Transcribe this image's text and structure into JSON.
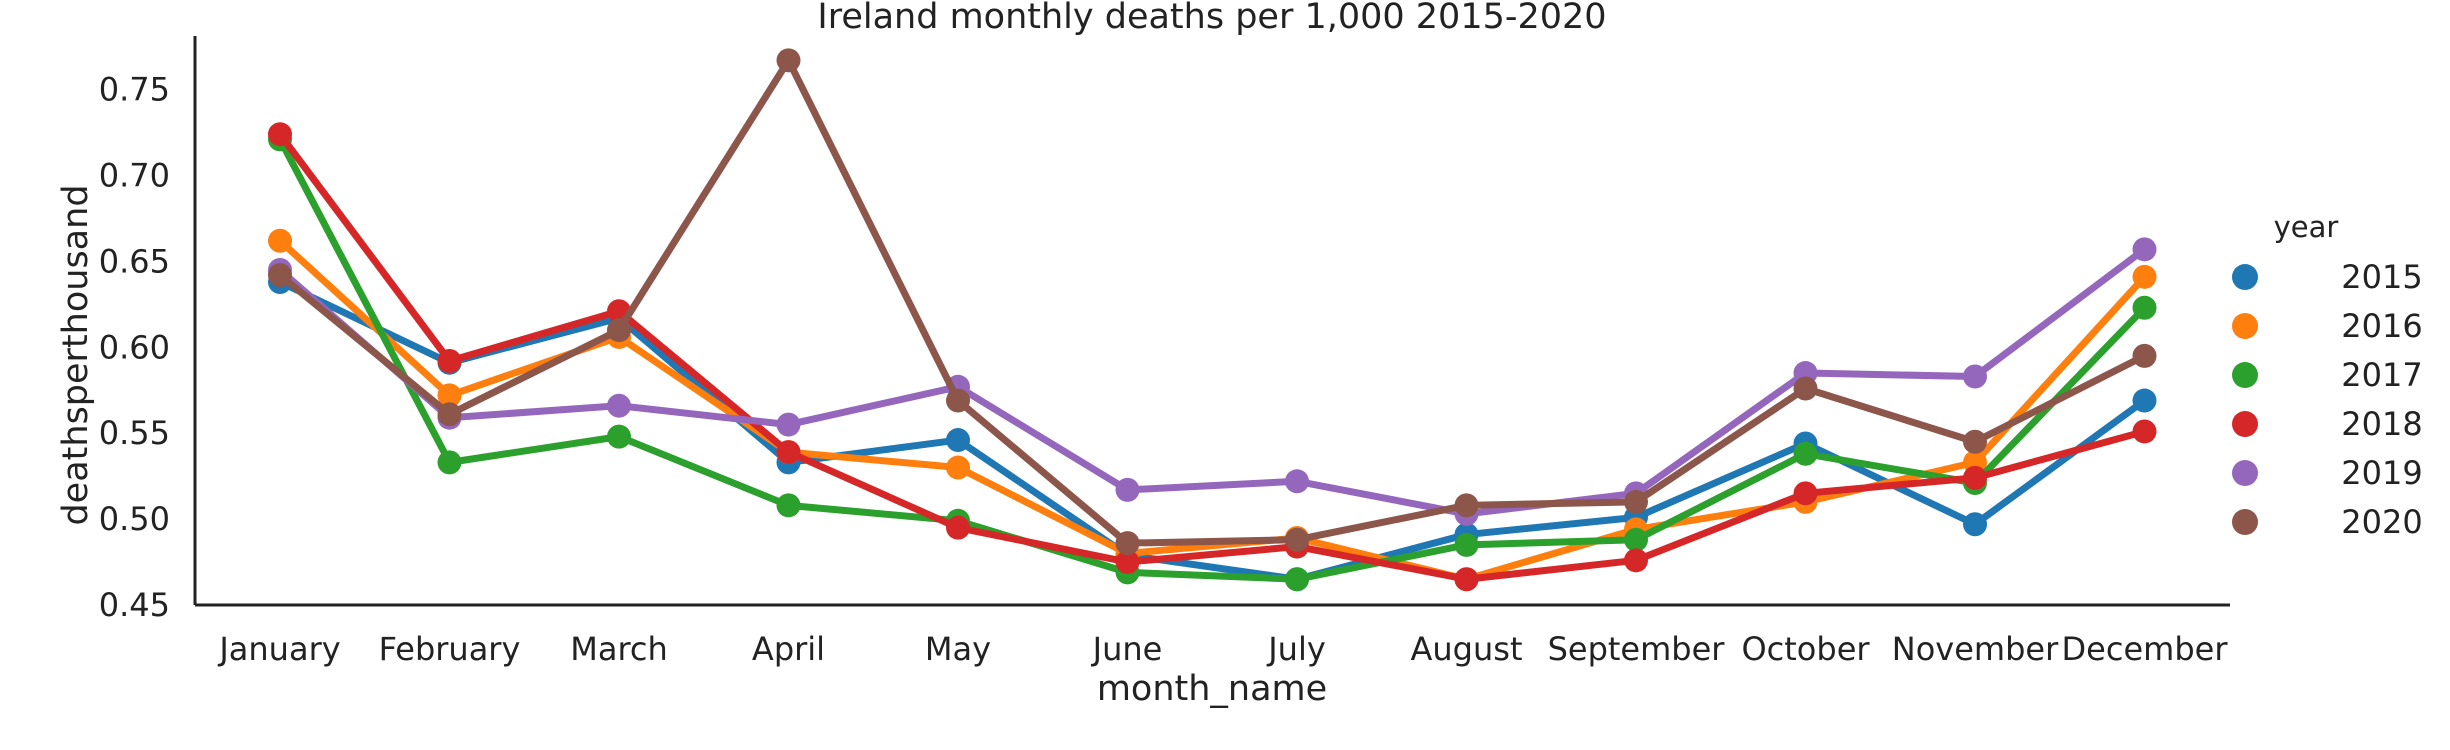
{
  "chart_data": {
    "type": "line",
    "title": "Ireland monthly deaths per 1,000 2015-2020",
    "xlabel": "month_name",
    "ylabel": "deathsperthousand",
    "categories": [
      "January",
      "February",
      "March",
      "April",
      "May",
      "June",
      "July",
      "August",
      "September",
      "October",
      "November",
      "December"
    ],
    "ylim": [
      0.45,
      0.78
    ],
    "yticks": [
      "0.45",
      "0.50",
      "0.55",
      "0.60",
      "0.65",
      "0.70",
      "0.75"
    ],
    "grid": false,
    "legend": {
      "title": "year",
      "placement": "right"
    },
    "series": [
      {
        "name": "2015",
        "color": "#1f77b4",
        "values": [
          0.638,
          0.591,
          0.617,
          0.533,
          0.546,
          0.479,
          0.465,
          0.491,
          0.501,
          0.544,
          0.497,
          0.569
        ]
      },
      {
        "name": "2016",
        "color": "#ff7f0e",
        "values": [
          0.662,
          0.572,
          0.606,
          0.539,
          0.53,
          0.48,
          0.489,
          0.465,
          0.494,
          0.51,
          0.533,
          0.641
        ]
      },
      {
        "name": "2017",
        "color": "#2ca02c",
        "values": [
          0.721,
          0.533,
          0.548,
          0.508,
          0.499,
          0.469,
          0.465,
          0.485,
          0.488,
          0.538,
          0.521,
          0.623
        ]
      },
      {
        "name": "2018",
        "color": "#d62728",
        "values": [
          0.724,
          0.592,
          0.621,
          0.539,
          0.495,
          0.475,
          0.484,
          0.465,
          0.476,
          0.515,
          0.524,
          0.551
        ]
      },
      {
        "name": "2019",
        "color": "#9467bd",
        "values": [
          0.645,
          0.559,
          0.566,
          0.555,
          0.577,
          0.517,
          0.522,
          0.503,
          0.515,
          0.585,
          0.583,
          0.657
        ]
      },
      {
        "name": "2020",
        "color": "#8c564b",
        "values": [
          0.642,
          0.561,
          0.61,
          0.767,
          0.569,
          0.486,
          0.488,
          0.508,
          0.51,
          0.576,
          0.545,
          0.595
        ]
      }
    ]
  }
}
